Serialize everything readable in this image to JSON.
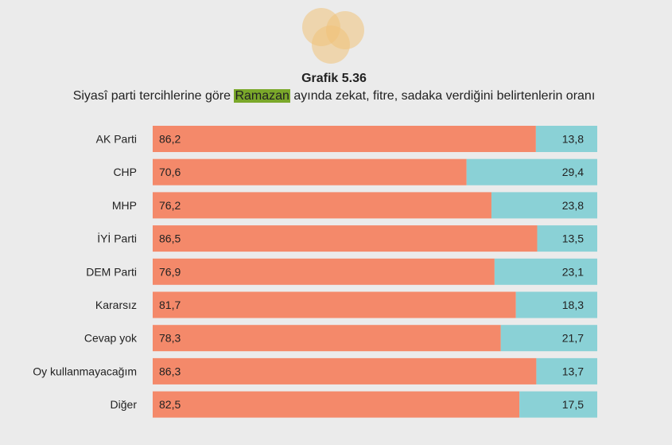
{
  "header": {
    "title": "Grafik 5.36",
    "subtitle_before": "Siyasî parti tercihlerine göre ",
    "subtitle_highlight": "Ramazan",
    "subtitle_after": " ayında zekat, fitre, sadaka verdiğini belirtenlerin oranı"
  },
  "colors": {
    "series_a": "#f4896a",
    "series_b": "#8ad1d6",
    "highlight": "#7aa82a",
    "background": "#ebebeb"
  },
  "chart_data": {
    "type": "bar",
    "orientation": "horizontal",
    "stacked": true,
    "categories": [
      "AK Parti",
      "CHP",
      "MHP",
      "İYİ Parti",
      "DEM Parti",
      "Kararsız",
      "Cevap yok",
      "Oy kullanmayacağım",
      "Diğer"
    ],
    "series": [
      {
        "values": [
          86.2,
          70.6,
          76.2,
          86.5,
          76.9,
          81.7,
          78.3,
          86.3,
          82.5
        ]
      },
      {
        "values": [
          13.8,
          29.4,
          23.8,
          13.5,
          23.1,
          18.3,
          21.7,
          13.7,
          17.5
        ]
      }
    ],
    "value_labels": [
      [
        "86,2",
        "70,6",
        "76,2",
        "86,5",
        "76,9",
        "81,7",
        "78,3",
        "86,3",
        "82,5"
      ],
      [
        "13,8",
        "29,4",
        "23,8",
        "13,5",
        "23,1",
        "18,3",
        "21,7",
        "13,7",
        "17,5"
      ]
    ],
    "xlim": [
      0,
      100
    ],
    "grid": false,
    "legend": "none"
  }
}
